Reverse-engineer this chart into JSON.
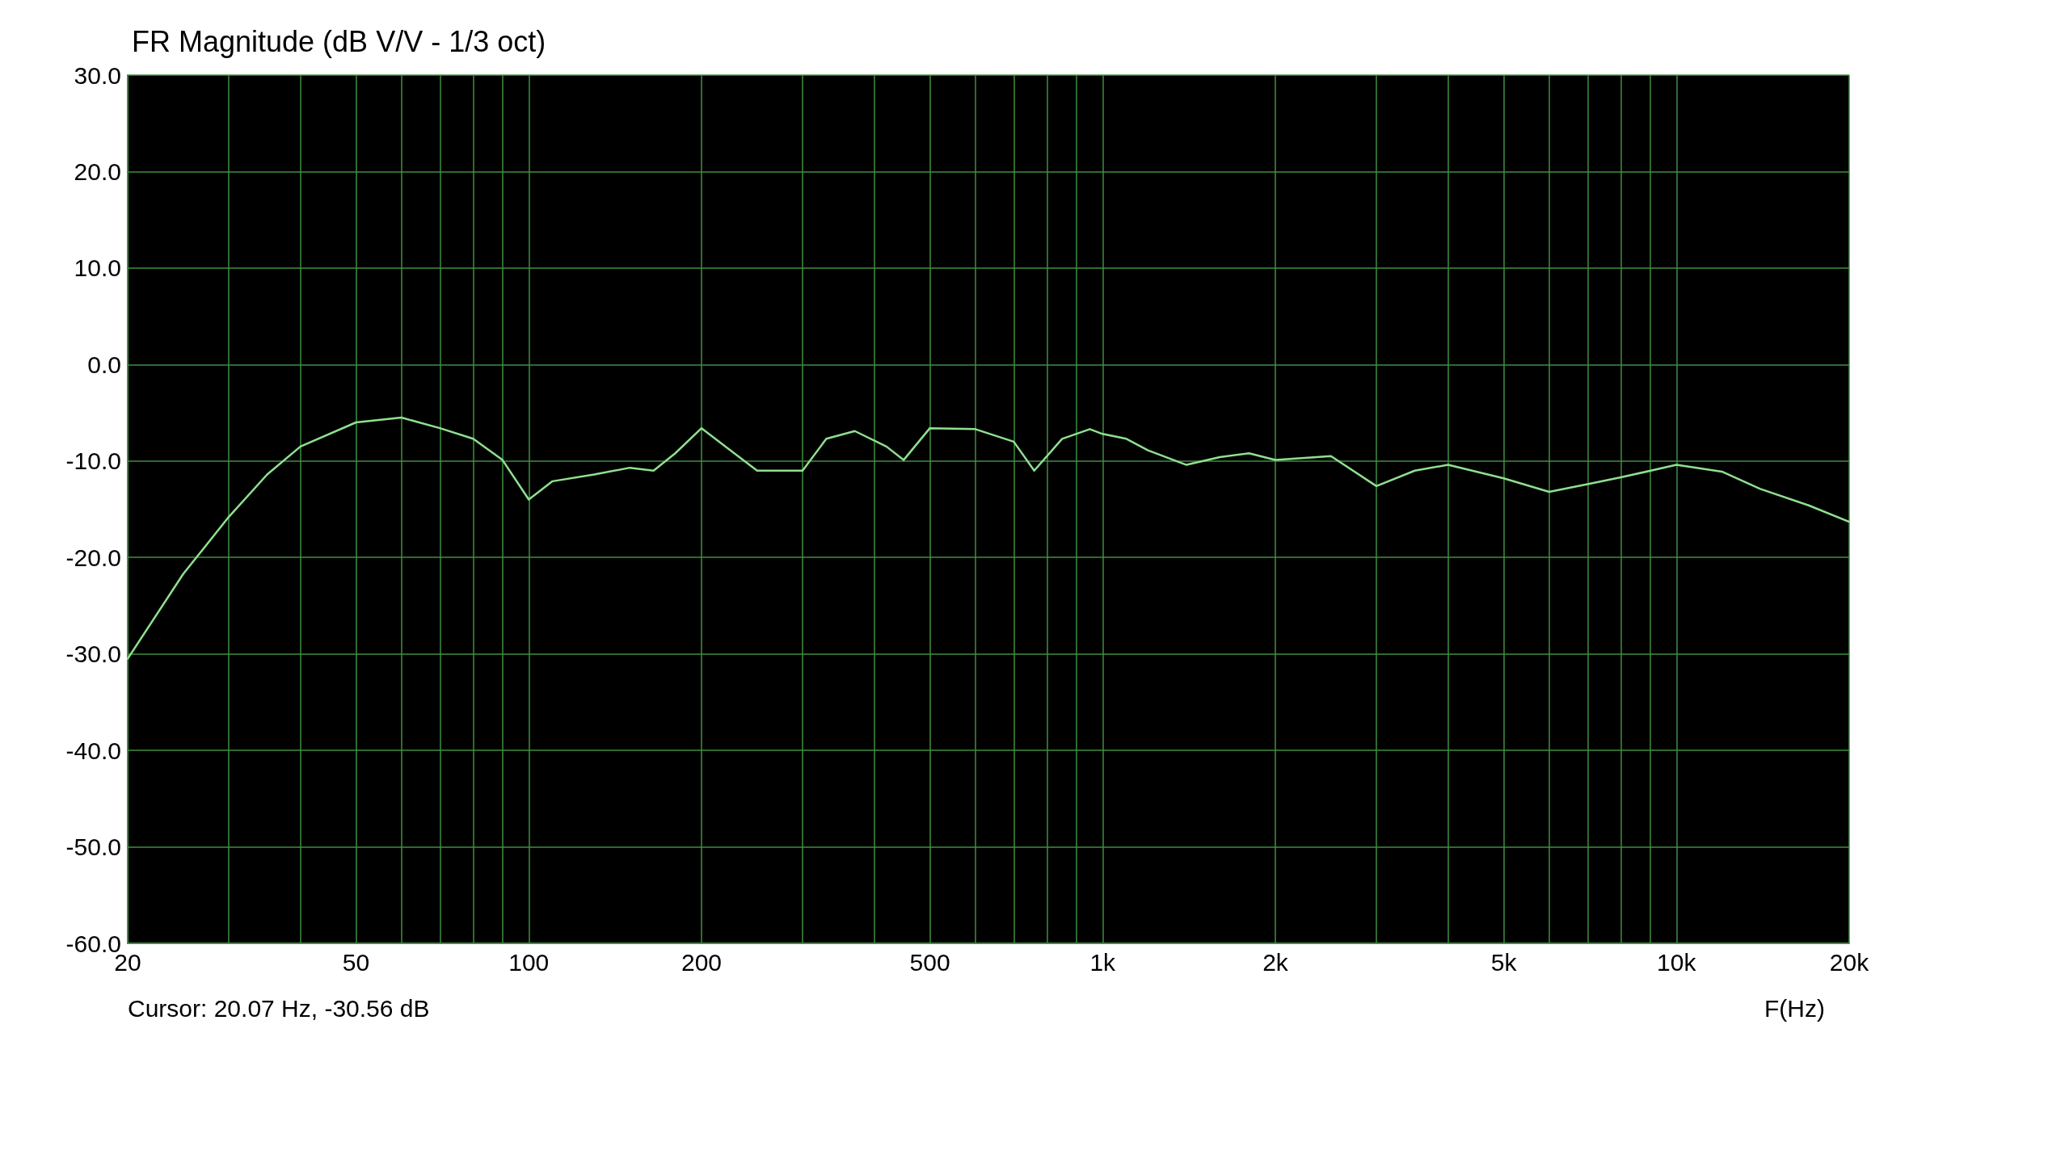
{
  "chart_data": {
    "type": "line",
    "title": "FR Magnitude (dB V/V - 1/3 oct)",
    "xlabel": "F(Hz)",
    "annotations": [
      "Cursor: 20.07 Hz, -30.56 dB"
    ],
    "x": [
      20,
      25,
      30,
      35,
      40,
      50,
      60,
      70,
      80,
      90,
      100,
      110,
      130,
      150,
      165,
      180,
      200,
      220,
      250,
      300,
      330,
      370,
      420,
      450,
      500,
      600,
      700,
      760,
      850,
      950,
      1000,
      1100,
      1200,
      1400,
      1600,
      1800,
      2000,
      2500,
      3000,
      3500,
      4000,
      5000,
      6000,
      7000,
      8000,
      10000,
      12000,
      14000,
      17000,
      20000
    ],
    "series": [
      {
        "color": "#8fe08f",
        "values": [
          -30.5,
          -21.7,
          -15.8,
          -11.4,
          -8.5,
          -6.0,
          -5.5,
          -6.6,
          -7.7,
          -9.9,
          -14.0,
          -12.1,
          -11.4,
          -10.7,
          -11.0,
          -9.2,
          -6.6,
          -8.5,
          -11.0,
          -11.0,
          -7.7,
          -6.9,
          -8.5,
          -9.9,
          -6.6,
          -6.7,
          -8.0,
          -11.0,
          -7.7,
          -6.7,
          -7.2,
          -7.7,
          -8.9,
          -10.4,
          -9.6,
          -9.2,
          -9.9,
          -9.5,
          -12.6,
          -11.0,
          -10.4,
          -11.8,
          -13.2,
          -12.4,
          -11.7,
          -10.4,
          -11.1,
          -12.9,
          -14.6,
          -16.3
        ]
      }
    ],
    "log": "x",
    "xlim": [
      20,
      20000
    ],
    "xticks": [
      20,
      {
        "value": 30,
        "label": null
      },
      {
        "value": 40,
        "label": null
      },
      50,
      {
        "value": 60,
        "label": null
      },
      {
        "value": 70,
        "label": null
      },
      {
        "value": 80,
        "label": null
      },
      {
        "value": 90,
        "label": null
      },
      100,
      200,
      {
        "value": 300,
        "label": null
      },
      {
        "value": 400,
        "label": null
      },
      500,
      {
        "value": 600,
        "label": null
      },
      {
        "value": 700,
        "label": null
      },
      {
        "value": 800,
        "label": null
      },
      {
        "value": 900,
        "label": null
      },
      {
        "value": 1000,
        "label": "1k"
      },
      {
        "value": 2000,
        "label": "2k"
      },
      {
        "value": 3000,
        "label": null
      },
      {
        "value": 4000,
        "label": null
      },
      {
        "value": 5000,
        "label": "5k"
      },
      {
        "value": 6000,
        "label": null
      },
      {
        "value": 7000,
        "label": null
      },
      {
        "value": 8000,
        "label": null
      },
      {
        "value": 9000,
        "label": null
      },
      {
        "value": 10000,
        "label": "10k"
      },
      {
        "value": 20000,
        "label": "20k"
      }
    ],
    "ylim": [
      -60,
      30
    ],
    "yticks": [
      {
        "value": 30,
        "label": "30.0"
      },
      {
        "value": 20,
        "label": "20.0"
      },
      {
        "value": 10,
        "label": "10.0"
      },
      {
        "value": 0,
        "label": "0.0"
      },
      {
        "value": -10,
        "label": "-10.0"
      },
      {
        "value": -20,
        "label": "-20.0"
      },
      {
        "value": -30,
        "label": "-30.0"
      },
      {
        "value": -40,
        "label": "-40.0"
      },
      {
        "value": -50,
        "label": "-50.0"
      },
      {
        "value": -60,
        "label": "-60.0"
      }
    ],
    "grid": true,
    "line_style": "solid",
    "marker": "none"
  }
}
